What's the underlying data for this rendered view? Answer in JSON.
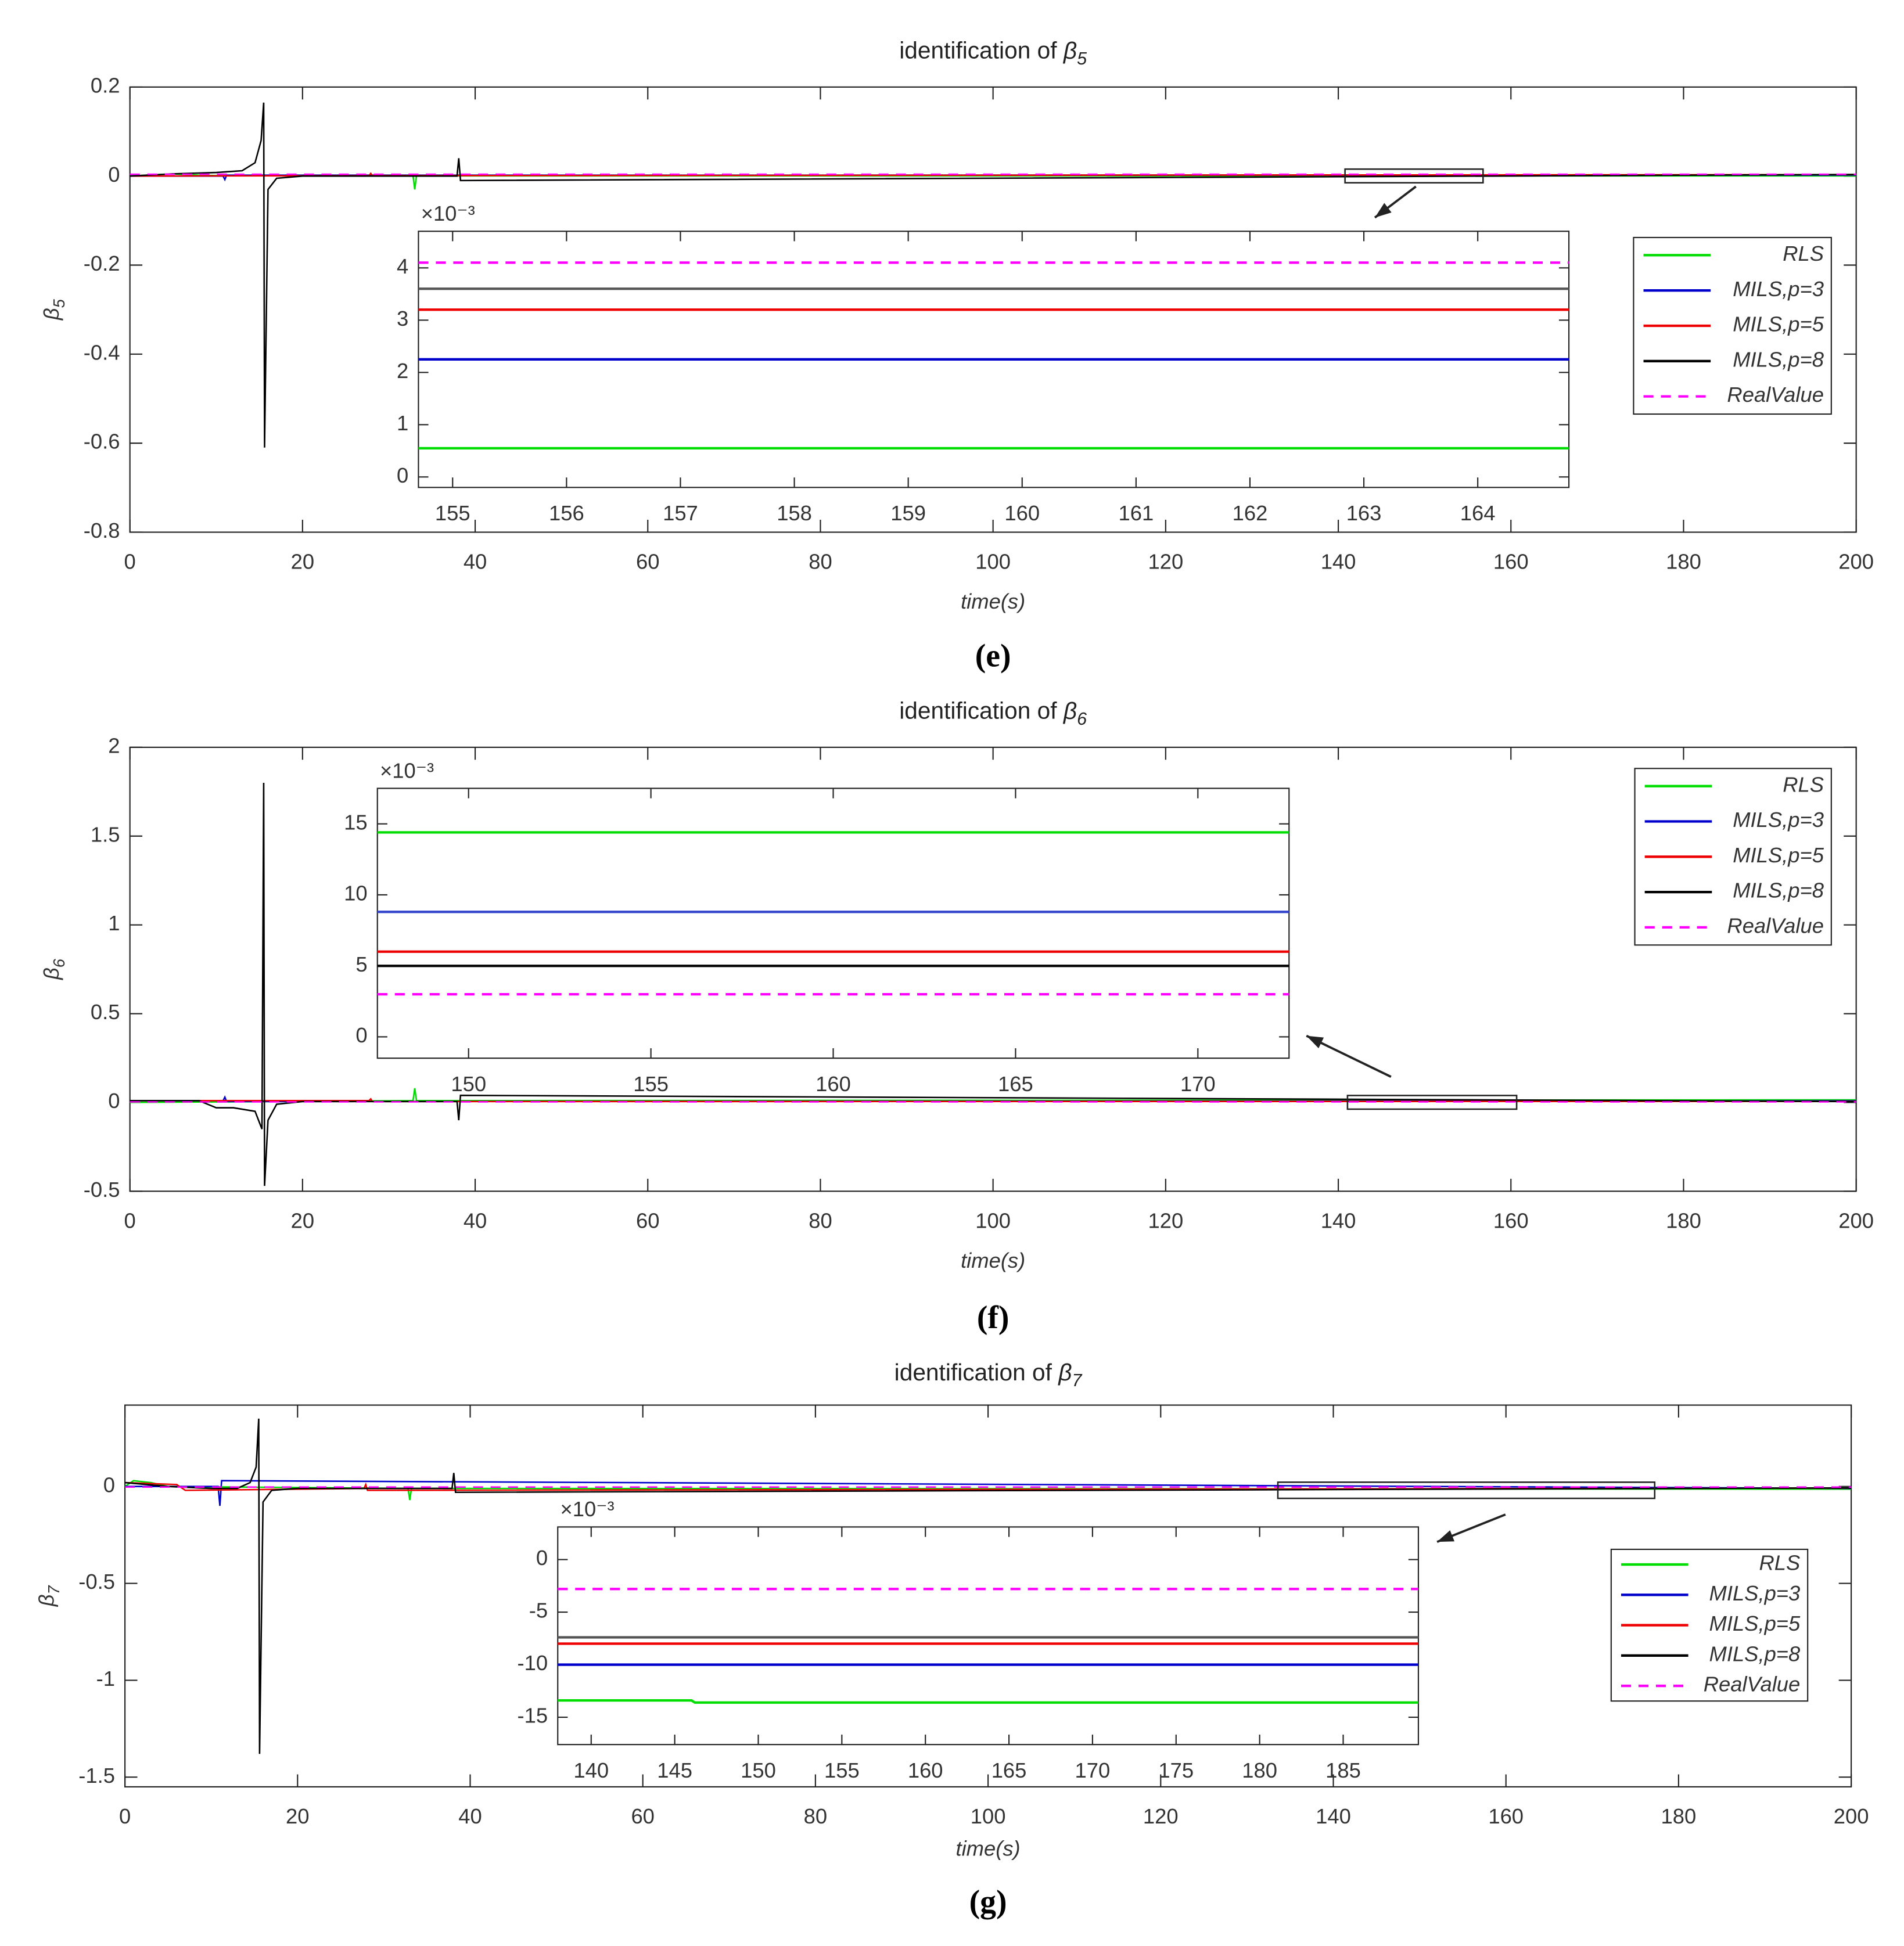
{
  "chart_data": [
    {
      "type": "line",
      "title": "identification of β5",
      "xlabel": "time(s)",
      "ylabel": "β5",
      "caption": "(e)",
      "xlim": [
        0,
        200
      ],
      "xticks": [
        0,
        20,
        40,
        60,
        80,
        100,
        120,
        140,
        160,
        180,
        200
      ],
      "ylim": [
        -0.8,
        0.2
      ],
      "yticks": [
        -0.8,
        -0.6,
        -0.4,
        -0.2,
        0,
        0.2
      ],
      "legend": "upper right",
      "series": [
        {
          "name": "RLS",
          "color": "#00dd00",
          "x": [
            0,
            3,
            5,
            8,
            10,
            32.8,
            33,
            33.2,
            33.5,
            200
          ],
          "values": [
            0,
            0.003,
            0.005,
            0.002,
            0.001,
            0.001,
            -0.03,
            0.001,
            0.0005,
            0.0005
          ]
        },
        {
          "name": "MILS,p=3",
          "color": "#0000cc",
          "x": [
            0,
            10.8,
            11,
            11.2,
            200
          ],
          "values": [
            0,
            0,
            -0.008,
            0.002,
            0.0022
          ]
        },
        {
          "name": "MILS,p=5",
          "color": "#ee0000",
          "x": [
            0,
            27.7,
            27.9,
            28.1,
            200
          ],
          "values": [
            0,
            0.001,
            0.006,
            0.001,
            0.0032
          ]
        },
        {
          "name": "MILS,p=8",
          "color": "#000000",
          "x": [
            0,
            5,
            10,
            13,
            14.5,
            15.2,
            15.5,
            15.6,
            16,
            17,
            20,
            37.9,
            38.1,
            38.3,
            200
          ],
          "values": [
            0,
            0.005,
            0.008,
            0.012,
            0.03,
            0.08,
            0.165,
            -0.61,
            -0.03,
            -0.005,
            0,
            0,
            0.04,
            -0.01,
            0.0036
          ]
        },
        {
          "name": "RealValue",
          "color": "#ff00ff",
          "linestyle": "dashed",
          "x": [
            0,
            200
          ],
          "values": [
            0.0041,
            0.0041
          ]
        }
      ],
      "inset": {
        "scale_label": "×10⁻³",
        "xlim": [
          154.7,
          164.8
        ],
        "xticks": [
          155,
          156,
          157,
          158,
          159,
          160,
          161,
          162,
          163,
          164
        ],
        "ylim": [
          -0.2,
          4.7
        ],
        "yticks": [
          0,
          1,
          2,
          3,
          4
        ],
        "series": [
          {
            "color": "#00dd00",
            "x": [
              154.7,
              164.8
            ],
            "values": [
              0.55,
              0.55
            ]
          },
          {
            "color": "#0000cc",
            "x": [
              154.7,
              164.8
            ],
            "values": [
              2.25,
              2.25
            ]
          },
          {
            "color": "#ee0000",
            "x": [
              154.7,
              164.8
            ],
            "values": [
              3.2,
              3.2
            ]
          },
          {
            "color": "#555555",
            "x": [
              154.7,
              164.8
            ],
            "values": [
              3.6,
              3.6
            ]
          },
          {
            "color": "#ff00ff",
            "linestyle": "dashed",
            "x": [
              154.7,
              164.8
            ],
            "values": [
              4.1,
              4.1
            ]
          }
        ]
      }
    },
    {
      "type": "line",
      "title": "identification of β6",
      "xlabel": "time(s)",
      "ylabel": "β6",
      "caption": "(f)",
      "xlim": [
        0,
        200
      ],
      "xticks": [
        0,
        20,
        40,
        60,
        80,
        100,
        120,
        140,
        160,
        180,
        200
      ],
      "ylim": [
        -0.5,
        2
      ],
      "yticks": [
        -0.5,
        0,
        0.5,
        1,
        1.5,
        2
      ],
      "legend": "upper right",
      "series": [
        {
          "name": "RLS",
          "color": "#00dd00",
          "x": [
            0,
            32.8,
            33,
            33.2,
            200
          ],
          "values": [
            0,
            0.01,
            0.08,
            0.01,
            0.0144
          ]
        },
        {
          "name": "MILS,p=3",
          "color": "#0000cc",
          "x": [
            0,
            10.8,
            11,
            11.2,
            200
          ],
          "values": [
            0.01,
            0.01,
            0.03,
            0.005,
            0.0088
          ]
        },
        {
          "name": "MILS,p=5",
          "color": "#ee0000",
          "x": [
            0,
            27.7,
            27.9,
            28.1,
            200
          ],
          "values": [
            0.01,
            0.01,
            0.02,
            0.005,
            0.006
          ]
        },
        {
          "name": "MILS,p=8",
          "color": "#000000",
          "x": [
            0,
            8,
            10,
            12,
            14.5,
            15.3,
            15.5,
            15.6,
            16,
            17,
            20,
            37.9,
            38.1,
            38.3,
            200
          ],
          "values": [
            0.01,
            0.01,
            -0.03,
            -0.03,
            -0.05,
            -0.15,
            1.8,
            -0.47,
            -0.1,
            -0.01,
            0.005,
            0.005,
            -0.1,
            0.04,
            0.005
          ]
        },
        {
          "name": "RealValue",
          "color": "#ff00ff",
          "linestyle": "dashed",
          "x": [
            0,
            200
          ],
          "values": [
            0.003,
            0.003
          ]
        }
      ],
      "inset": {
        "scale_label": "×10⁻³",
        "xlim": [
          147.5,
          172.5
        ],
        "xticks": [
          150,
          155,
          160,
          165,
          170
        ],
        "ylim": [
          -1.5,
          17.5
        ],
        "yticks": [
          0,
          5,
          10,
          15
        ],
        "series": [
          {
            "color": "#00dd00",
            "x": [
              147.5,
              172.5
            ],
            "values": [
              14.4,
              14.4
            ]
          },
          {
            "color": "#3344cc",
            "x": [
              147.5,
              172.5
            ],
            "values": [
              8.8,
              8.8
            ]
          },
          {
            "color": "#ee0000",
            "x": [
              147.5,
              172.5
            ],
            "values": [
              6,
              6
            ]
          },
          {
            "color": "#000000",
            "x": [
              147.5,
              172.5
            ],
            "values": [
              5,
              5
            ]
          },
          {
            "color": "#ff00ff",
            "linestyle": "dashed",
            "x": [
              147.5,
              172.5
            ],
            "values": [
              3,
              3
            ]
          }
        ]
      }
    },
    {
      "type": "line",
      "title": "identification of β7",
      "xlabel": "time(s)",
      "ylabel": "β7",
      "caption": "(g)",
      "xlim": [
        0,
        200
      ],
      "xticks": [
        0,
        20,
        40,
        60,
        80,
        100,
        120,
        140,
        160,
        180,
        200
      ],
      "ylim": [
        -1.55,
        0.42
      ],
      "yticks": [
        -1.5,
        -1,
        -0.5,
        0
      ],
      "legend": "center right",
      "series": [
        {
          "name": "RLS",
          "color": "#00dd00",
          "x": [
            0,
            1,
            3,
            5,
            32.8,
            33,
            33.2,
            200
          ],
          "values": [
            0,
            0.03,
            0.02,
            0,
            -0.01,
            -0.07,
            -0.01,
            -0.0135
          ]
        },
        {
          "name": "MILS,p=3",
          "color": "#0000cc",
          "x": [
            0,
            10.8,
            11,
            11.2,
            200
          ],
          "values": [
            0,
            0,
            -0.1,
            0.03,
            -0.01
          ]
        },
        {
          "name": "MILS,p=5",
          "color": "#ee0000",
          "x": [
            0,
            6,
            7,
            27.7,
            27.9,
            28.1,
            200
          ],
          "values": [
            0.02,
            0.01,
            -0.02,
            -0.01,
            0.01,
            -0.02,
            -0.008
          ]
        },
        {
          "name": "MILS,p=8",
          "color": "#000000",
          "x": [
            0,
            5,
            10,
            13,
            14.5,
            15.2,
            15.5,
            15.6,
            16,
            17,
            20,
            37.9,
            38.1,
            38.3,
            200
          ],
          "values": [
            0.02,
            0,
            -0.01,
            -0.01,
            0.02,
            0.1,
            0.35,
            -1.38,
            -0.08,
            -0.02,
            -0.01,
            -0.01,
            0.07,
            -0.03,
            -0.0074
          ]
        },
        {
          "name": "RealValue",
          "color": "#ff00ff",
          "linestyle": "dashed",
          "x": [
            0,
            200
          ],
          "values": [
            -0.0028,
            -0.0028
          ]
        }
      ],
      "inset": {
        "scale_label": "×10⁻³",
        "xlim": [
          138,
          189.5
        ],
        "xticks": [
          140,
          145,
          150,
          155,
          160,
          165,
          170,
          175,
          180,
          185
        ],
        "ylim": [
          -17.6,
          3.1
        ],
        "yticks": [
          -15,
          -10,
          -5,
          0
        ],
        "series": [
          {
            "color": "#00dd00",
            "x": [
              138,
              146,
              146.2,
              189.5
            ],
            "values": [
              -13.4,
              -13.4,
              -13.6,
              -13.6
            ]
          },
          {
            "color": "#0000cc",
            "x": [
              138,
              189.5
            ],
            "values": [
              -10,
              -10
            ]
          },
          {
            "color": "#ee0000",
            "x": [
              138,
              189.5
            ],
            "values": [
              -8,
              -8
            ]
          },
          {
            "color": "#555555",
            "x": [
              138,
              189.5
            ],
            "values": [
              -7.4,
              -7.4
            ]
          },
          {
            "color": "#ff00ff",
            "linestyle": "dashed",
            "x": [
              138,
              189.5
            ],
            "values": [
              -2.8,
              -2.8
            ]
          }
        ]
      }
    }
  ]
}
